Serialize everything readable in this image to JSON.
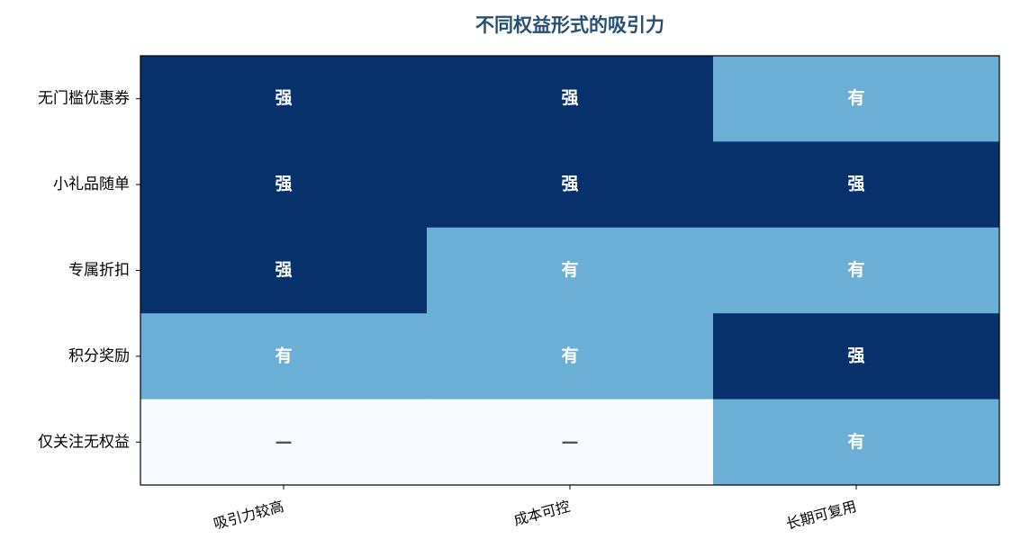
{
  "chart_data": {
    "type": "heatmap",
    "title": "不同权益形式的吸引力",
    "x_categories": [
      "吸引力较高",
      "成本可控",
      "长期可复用"
    ],
    "y_categories": [
      "无门槛优惠券",
      "小礼品随单",
      "专属折扣",
      "积分奖励",
      "仅关注无权益"
    ],
    "values": [
      [
        2,
        2,
        1
      ],
      [
        2,
        2,
        2
      ],
      [
        2,
        1,
        1
      ],
      [
        1,
        1,
        2
      ],
      [
        0,
        0,
        1
      ]
    ],
    "value_labels": [
      [
        "强",
        "强",
        "有"
      ],
      [
        "强",
        "强",
        "强"
      ],
      [
        "强",
        "有",
        "有"
      ],
      [
        "有",
        "有",
        "强"
      ],
      [
        "—",
        "—",
        "有"
      ]
    ],
    "colors": [
      "#f7fbff",
      "#6baed6",
      "#08306b"
    ]
  }
}
